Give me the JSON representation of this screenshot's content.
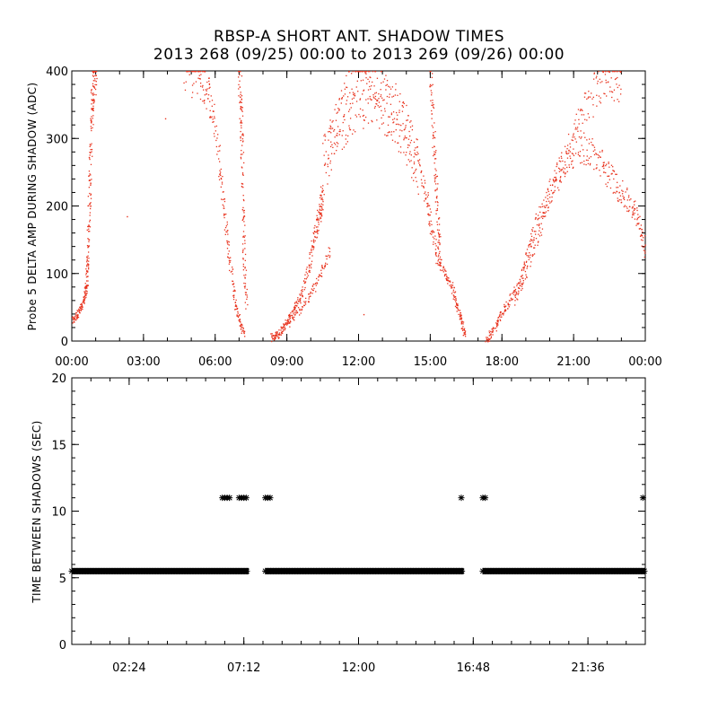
{
  "header": {
    "title": "RBSP-A SHORT ANT. SHADOW TIMES",
    "subtitle": "2013 268 (09/25) 00:00 to 2013 269 (09/26) 00:00"
  },
  "chart_data": [
    {
      "type": "scatter",
      "title": "",
      "xlabel": "",
      "ylabel": "Probe 5 DELTA AMP DURING SHADOW (ADC)",
      "xlim_hours": [
        0,
        24
      ],
      "ylim": [
        0,
        400
      ],
      "xtick_labels": [
        "00:00",
        "03:00",
        "06:00",
        "09:00",
        "12:00",
        "15:00",
        "18:00",
        "21:00",
        "00:00"
      ],
      "ytick_labels": [
        "0",
        "100",
        "200",
        "300",
        "400"
      ],
      "grid": false,
      "color": "#e8331e",
      "segments": [
        {
          "x": [
            0.0,
            0.2,
            0.4,
            0.55,
            0.6,
            0.65,
            0.7,
            0.75,
            0.8,
            0.85,
            0.9,
            1.0
          ],
          "y": [
            30,
            40,
            50,
            70,
            85,
            120,
            180,
            250,
            320,
            370,
            400,
            400
          ]
        },
        {
          "x": [
            4.7,
            5.3,
            5.6,
            5.9,
            6.2,
            6.4,
            6.6,
            6.8,
            7.0,
            7.2
          ],
          "y": [
            400,
            390,
            380,
            340,
            260,
            180,
            120,
            60,
            30,
            10
          ]
        },
        {
          "x": [
            7.0,
            7.05,
            7.1,
            7.15,
            7.2,
            7.3
          ],
          "y": [
            400,
            350,
            300,
            200,
            120,
            50
          ]
        },
        {
          "x": [
            8.3,
            8.6,
            9.0,
            9.3,
            9.6,
            9.9,
            10.1,
            10.3,
            10.4,
            10.5
          ],
          "y": [
            5,
            10,
            30,
            50,
            70,
            110,
            150,
            180,
            200,
            220
          ]
        },
        {
          "x": [
            8.5,
            9.0,
            9.5,
            10.0,
            10.4,
            10.8
          ],
          "y": [
            8,
            25,
            45,
            70,
            100,
            140
          ]
        },
        {
          "x": [
            10.5,
            11.0,
            11.5,
            12.0,
            12.5,
            13.0,
            13.5,
            14.0,
            14.4,
            14.8,
            15.0,
            15.3,
            15.6,
            15.9,
            16.1,
            16.3,
            16.45
          ],
          "y": [
            280,
            320,
            370,
            400,
            390,
            370,
            350,
            320,
            280,
            220,
            170,
            120,
            100,
            80,
            50,
            30,
            10
          ]
        },
        {
          "x": [
            10.6,
            11.2,
            11.8,
            12.5,
            13.2,
            13.9,
            14.5
          ],
          "y": [
            250,
            300,
            340,
            350,
            330,
            290,
            230
          ]
        },
        {
          "x": [
            15.0,
            15.1,
            15.2,
            15.3,
            15.4
          ],
          "y": [
            400,
            320,
            250,
            180,
            120
          ]
        },
        {
          "x": [
            17.3,
            17.6,
            17.9,
            18.2,
            18.6,
            19.0,
            19.3,
            19.7,
            20.2,
            20.7,
            21.2,
            21.7,
            22.2,
            22.6,
            23.0,
            23.4,
            23.7,
            24.0
          ],
          "y": [
            0,
            15,
            35,
            55,
            80,
            120,
            160,
            200,
            240,
            270,
            290,
            280,
            260,
            240,
            220,
            200,
            180,
            130
          ]
        },
        {
          "x": [
            18.5,
            19.0,
            19.6,
            20.2,
            20.8,
            21.4,
            22.0,
            22.5,
            23.0
          ],
          "y": [
            60,
            100,
            170,
            230,
            290,
            340,
            380,
            400,
            380
          ]
        },
        {
          "x": [
            2.3,
            3.9,
            12.2
          ],
          "y": [
            185,
            330,
            40
          ]
        }
      ]
    },
    {
      "type": "scatter",
      "title": "",
      "xlabel": "",
      "ylabel": "TIME BETWEEN SHADOWS (SEC)",
      "xlim_hours": [
        0,
        24
      ],
      "ylim": [
        0,
        20
      ],
      "xtick_labels": [
        "02:24",
        "07:12",
        "12:00",
        "16:48",
        "21:36"
      ],
      "ytick_labels": [
        "0",
        "5",
        "10",
        "15",
        "20"
      ],
      "grid": false,
      "marker": "asterisk",
      "color": "#000000",
      "baseline": {
        "value": 5.5,
        "ranges_hours": [
          [
            0.0,
            7.4
          ],
          [
            8.1,
            16.4
          ],
          [
            17.2,
            24.0
          ]
        ]
      },
      "outliers": {
        "y": 11,
        "x_hours": [
          6.3,
          6.4,
          6.5,
          6.6,
          7.0,
          7.1,
          7.2,
          7.3,
          8.1,
          8.2,
          8.3,
          16.3,
          17.2,
          17.3,
          23.9
        ]
      }
    }
  ]
}
